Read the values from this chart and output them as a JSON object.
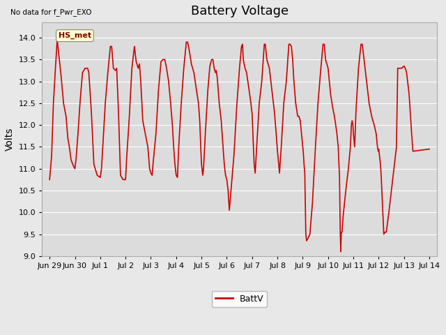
{
  "title": "Battery Voltage",
  "ylabel": "Volts",
  "no_data_text": "No data for f_Pwr_EXO",
  "legend_label": "BattV",
  "legend_color": "#cc0000",
  "line_color": "#cc0000",
  "line_width": 1.2,
  "ylim": [
    9.0,
    14.35
  ],
  "yticks": [
    9.0,
    9.5,
    10.0,
    10.5,
    11.0,
    11.5,
    12.0,
    12.5,
    13.0,
    13.5,
    14.0
  ],
  "bg_color": "#e8e8e8",
  "plot_bg_color": "#dcdcdc",
  "hs_met_box_color": "#ffffcc",
  "hs_met_text_color": "#800000",
  "title_fontsize": 13,
  "axis_label_fontsize": 10,
  "tick_fontsize": 8,
  "x_tick_labels": [
    "Jun 29",
    "Jun 30",
    "Jul 1",
    "Jul 2",
    "Jul 3",
    "Jul 4",
    "Jul 5",
    "Jul 6",
    "Jul 7",
    "Jul 8",
    "Jul 9",
    "Jul 10",
    "Jul 11",
    "Jul 12",
    "Jul 13",
    "Jul 14"
  ],
  "x_tick_positions": [
    0,
    1,
    2,
    3,
    4,
    5,
    6,
    7,
    8,
    9,
    10,
    11,
    12,
    13,
    14,
    15
  ],
  "key_points": [
    [
      0.0,
      10.75
    ],
    [
      0.08,
      11.3
    ],
    [
      0.15,
      12.5
    ],
    [
      0.22,
      13.2
    ],
    [
      0.3,
      13.95
    ],
    [
      0.45,
      13.15
    ],
    [
      0.55,
      12.5
    ],
    [
      0.65,
      12.2
    ],
    [
      0.72,
      11.7
    ],
    [
      0.78,
      11.5
    ],
    [
      0.85,
      11.2
    ],
    [
      0.95,
      11.05
    ],
    [
      1.0,
      11.0
    ],
    [
      1.05,
      11.25
    ],
    [
      1.12,
      11.8
    ],
    [
      1.2,
      12.5
    ],
    [
      1.3,
      13.2
    ],
    [
      1.4,
      13.3
    ],
    [
      1.5,
      13.3
    ],
    [
      1.55,
      13.2
    ],
    [
      1.65,
      12.3
    ],
    [
      1.75,
      11.1
    ],
    [
      1.88,
      10.85
    ],
    [
      2.0,
      10.8
    ],
    [
      2.05,
      11.0
    ],
    [
      2.1,
      11.5
    ],
    [
      2.2,
      12.5
    ],
    [
      2.3,
      13.2
    ],
    [
      2.4,
      13.8
    ],
    [
      2.45,
      13.8
    ],
    [
      2.52,
      13.3
    ],
    [
      2.6,
      13.25
    ],
    [
      2.65,
      13.3
    ],
    [
      2.72,
      12.3
    ],
    [
      2.8,
      10.85
    ],
    [
      2.9,
      10.75
    ],
    [
      3.0,
      10.75
    ],
    [
      3.05,
      11.3
    ],
    [
      3.15,
      12.2
    ],
    [
      3.25,
      13.3
    ],
    [
      3.35,
      13.8
    ],
    [
      3.42,
      13.45
    ],
    [
      3.5,
      13.3
    ],
    [
      3.55,
      13.4
    ],
    [
      3.6,
      13.0
    ],
    [
      3.68,
      12.1
    ],
    [
      3.78,
      11.8
    ],
    [
      3.88,
      11.5
    ],
    [
      3.95,
      11.0
    ],
    [
      4.0,
      10.9
    ],
    [
      4.05,
      10.85
    ],
    [
      4.1,
      11.2
    ],
    [
      4.2,
      11.8
    ],
    [
      4.3,
      12.8
    ],
    [
      4.4,
      13.45
    ],
    [
      4.48,
      13.5
    ],
    [
      4.55,
      13.5
    ],
    [
      4.62,
      13.3
    ],
    [
      4.7,
      13.0
    ],
    [
      4.78,
      12.5
    ],
    [
      4.85,
      12.0
    ],
    [
      4.9,
      11.5
    ],
    [
      4.95,
      11.1
    ],
    [
      5.0,
      10.85
    ],
    [
      5.05,
      10.8
    ],
    [
      5.1,
      11.5
    ],
    [
      5.2,
      12.5
    ],
    [
      5.3,
      13.3
    ],
    [
      5.4,
      13.9
    ],
    [
      5.45,
      13.9
    ],
    [
      5.52,
      13.7
    ],
    [
      5.6,
      13.4
    ],
    [
      5.7,
      13.2
    ],
    [
      5.8,
      12.8
    ],
    [
      5.88,
      12.5
    ],
    [
      5.93,
      12.1
    ],
    [
      5.97,
      11.5
    ],
    [
      6.0,
      11.1
    ],
    [
      6.05,
      10.85
    ],
    [
      6.08,
      11.0
    ],
    [
      6.15,
      11.8
    ],
    [
      6.25,
      12.8
    ],
    [
      6.33,
      13.35
    ],
    [
      6.4,
      13.5
    ],
    [
      6.45,
      13.5
    ],
    [
      6.5,
      13.3
    ],
    [
      6.55,
      13.2
    ],
    [
      6.58,
      13.25
    ],
    [
      6.62,
      13.1
    ],
    [
      6.7,
      12.5
    ],
    [
      6.78,
      12.1
    ],
    [
      6.85,
      11.5
    ],
    [
      6.9,
      11.1
    ],
    [
      6.95,
      10.85
    ],
    [
      7.0,
      10.75
    ],
    [
      7.05,
      10.5
    ],
    [
      7.1,
      10.05
    ],
    [
      7.18,
      10.6
    ],
    [
      7.28,
      11.3
    ],
    [
      7.4,
      12.5
    ],
    [
      7.5,
      13.3
    ],
    [
      7.58,
      13.8
    ],
    [
      7.62,
      13.85
    ],
    [
      7.65,
      13.5
    ],
    [
      7.72,
      13.3
    ],
    [
      7.78,
      13.2
    ],
    [
      7.88,
      12.8
    ],
    [
      7.95,
      12.5
    ],
    [
      8.0,
      12.25
    ],
    [
      8.05,
      11.5
    ],
    [
      8.08,
      11.1
    ],
    [
      8.12,
      10.9
    ],
    [
      8.18,
      11.5
    ],
    [
      8.28,
      12.5
    ],
    [
      8.38,
      13.0
    ],
    [
      8.48,
      13.85
    ],
    [
      8.52,
      13.85
    ],
    [
      8.58,
      13.5
    ],
    [
      8.68,
      13.3
    ],
    [
      8.78,
      12.8
    ],
    [
      8.88,
      12.3
    ],
    [
      8.95,
      11.8
    ],
    [
      9.0,
      11.4
    ],
    [
      9.05,
      11.1
    ],
    [
      9.08,
      10.9
    ],
    [
      9.15,
      11.5
    ],
    [
      9.25,
      12.5
    ],
    [
      9.35,
      13.0
    ],
    [
      9.45,
      13.85
    ],
    [
      9.5,
      13.85
    ],
    [
      9.55,
      13.8
    ],
    [
      9.6,
      13.5
    ],
    [
      9.65,
      13.0
    ],
    [
      9.72,
      12.5
    ],
    [
      9.8,
      12.2
    ],
    [
      9.85,
      12.2
    ],
    [
      9.9,
      12.1
    ],
    [
      9.95,
      11.8
    ],
    [
      10.0,
      11.5
    ],
    [
      10.03,
      11.3
    ],
    [
      10.05,
      11.1
    ],
    [
      10.08,
      10.9
    ],
    [
      10.12,
      9.5
    ],
    [
      10.15,
      9.35
    ],
    [
      10.2,
      9.4
    ],
    [
      10.28,
      9.5
    ],
    [
      10.38,
      10.2
    ],
    [
      10.5,
      11.5
    ],
    [
      10.6,
      12.5
    ],
    [
      10.7,
      13.2
    ],
    [
      10.8,
      13.85
    ],
    [
      10.85,
      13.85
    ],
    [
      10.9,
      13.5
    ],
    [
      11.0,
      13.3
    ],
    [
      11.1,
      12.7
    ],
    [
      11.18,
      12.4
    ],
    [
      11.25,
      12.2
    ],
    [
      11.3,
      12.0
    ],
    [
      11.35,
      11.8
    ],
    [
      11.4,
      11.5
    ],
    [
      11.42,
      11.2
    ],
    [
      11.45,
      10.85
    ],
    [
      11.48,
      9.55
    ],
    [
      11.5,
      9.1
    ],
    [
      11.52,
      9.55
    ],
    [
      11.55,
      9.55
    ],
    [
      11.6,
      9.95
    ],
    [
      11.7,
      10.5
    ],
    [
      11.8,
      11.0
    ],
    [
      11.88,
      11.5
    ],
    [
      11.92,
      12.0
    ],
    [
      11.95,
      12.1
    ],
    [
      11.98,
      12.0
    ],
    [
      12.0,
      11.8
    ],
    [
      12.05,
      11.5
    ],
    [
      12.1,
      12.3
    ],
    [
      12.2,
      13.3
    ],
    [
      12.3,
      13.85
    ],
    [
      12.35,
      13.85
    ],
    [
      12.42,
      13.5
    ],
    [
      12.52,
      13.0
    ],
    [
      12.62,
      12.5
    ],
    [
      12.72,
      12.2
    ],
    [
      12.82,
      12.0
    ],
    [
      12.9,
      11.8
    ],
    [
      12.95,
      11.5
    ],
    [
      12.98,
      11.4
    ],
    [
      13.0,
      11.45
    ],
    [
      13.05,
      11.2
    ],
    [
      13.08,
      11.0
    ],
    [
      13.1,
      10.8
    ],
    [
      13.2,
      9.5
    ],
    [
      13.25,
      9.55
    ],
    [
      13.3,
      9.55
    ],
    [
      13.4,
      10.0
    ],
    [
      13.5,
      10.5
    ],
    [
      13.6,
      11.0
    ],
    [
      13.7,
      11.5
    ],
    [
      13.75,
      13.3
    ],
    [
      13.8,
      13.3
    ],
    [
      13.85,
      13.3
    ],
    [
      13.9,
      13.3
    ],
    [
      14.0,
      13.35
    ],
    [
      14.05,
      13.3
    ],
    [
      14.1,
      13.2
    ],
    [
      14.2,
      12.7
    ],
    [
      14.3,
      11.8
    ],
    [
      14.35,
      11.4
    ],
    [
      15.0,
      11.45
    ]
  ]
}
